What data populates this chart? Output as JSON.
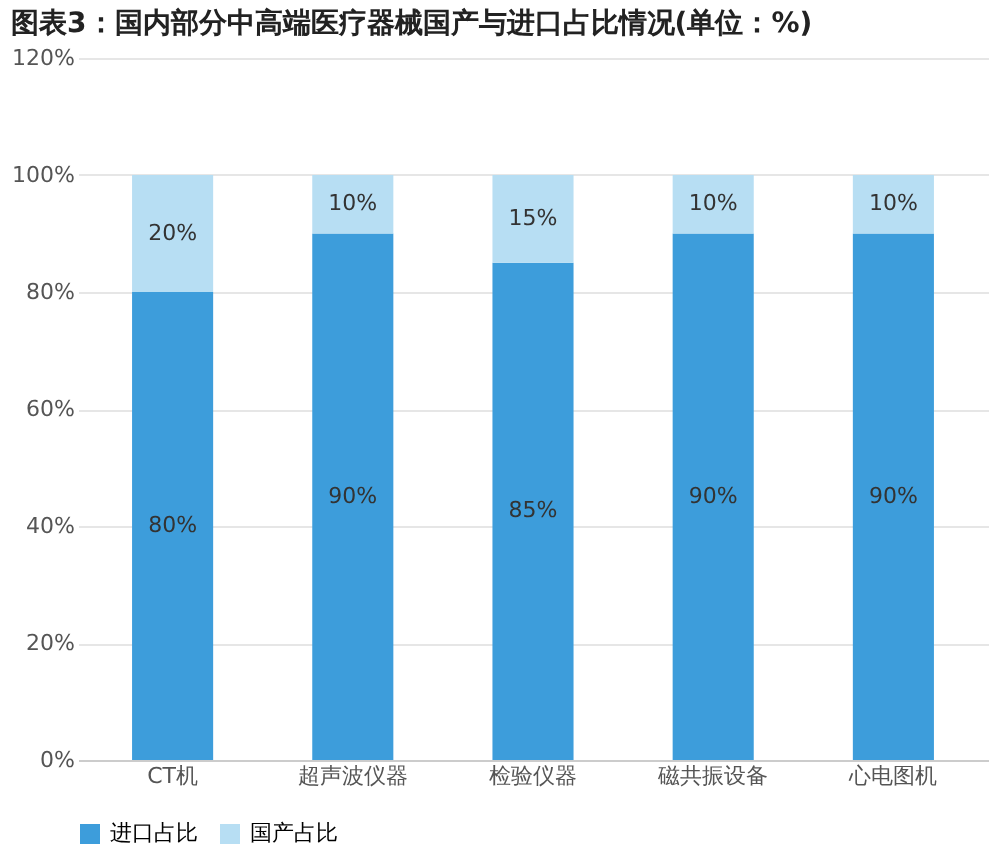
{
  "chart_data": {
    "type": "bar",
    "title": "图表3：国内部分中高端医疗器械国产与进口占比情况(单位：%)",
    "stacked": true,
    "categories": [
      "CT机",
      "超声波仪器",
      "检验仪器",
      "磁共振设备",
      "心电图机"
    ],
    "series": [
      {
        "name": "进口占比",
        "color": "#3d9ddb",
        "values": [
          80,
          90,
          85,
          90,
          90
        ],
        "value_labels": [
          "80%",
          "90%",
          "85%",
          "90%",
          "90%"
        ]
      },
      {
        "name": "国产占比",
        "color": "#b7def3",
        "values": [
          20,
          10,
          15,
          10,
          10
        ],
        "value_labels": [
          "20%",
          "10%",
          "15%",
          "10%",
          "10%"
        ]
      }
    ],
    "ylim": [
      0,
      120
    ],
    "yticks": [
      {
        "value": 0,
        "label": "0%"
      },
      {
        "value": 20,
        "label": "20%"
      },
      {
        "value": 40,
        "label": "40%"
      },
      {
        "value": 60,
        "label": "60%"
      },
      {
        "value": 80,
        "label": "80%"
      },
      {
        "value": 100,
        "label": "100%"
      },
      {
        "value": 120,
        "label": "120%"
      }
    ],
    "grid": "y",
    "legend": "bottom"
  }
}
